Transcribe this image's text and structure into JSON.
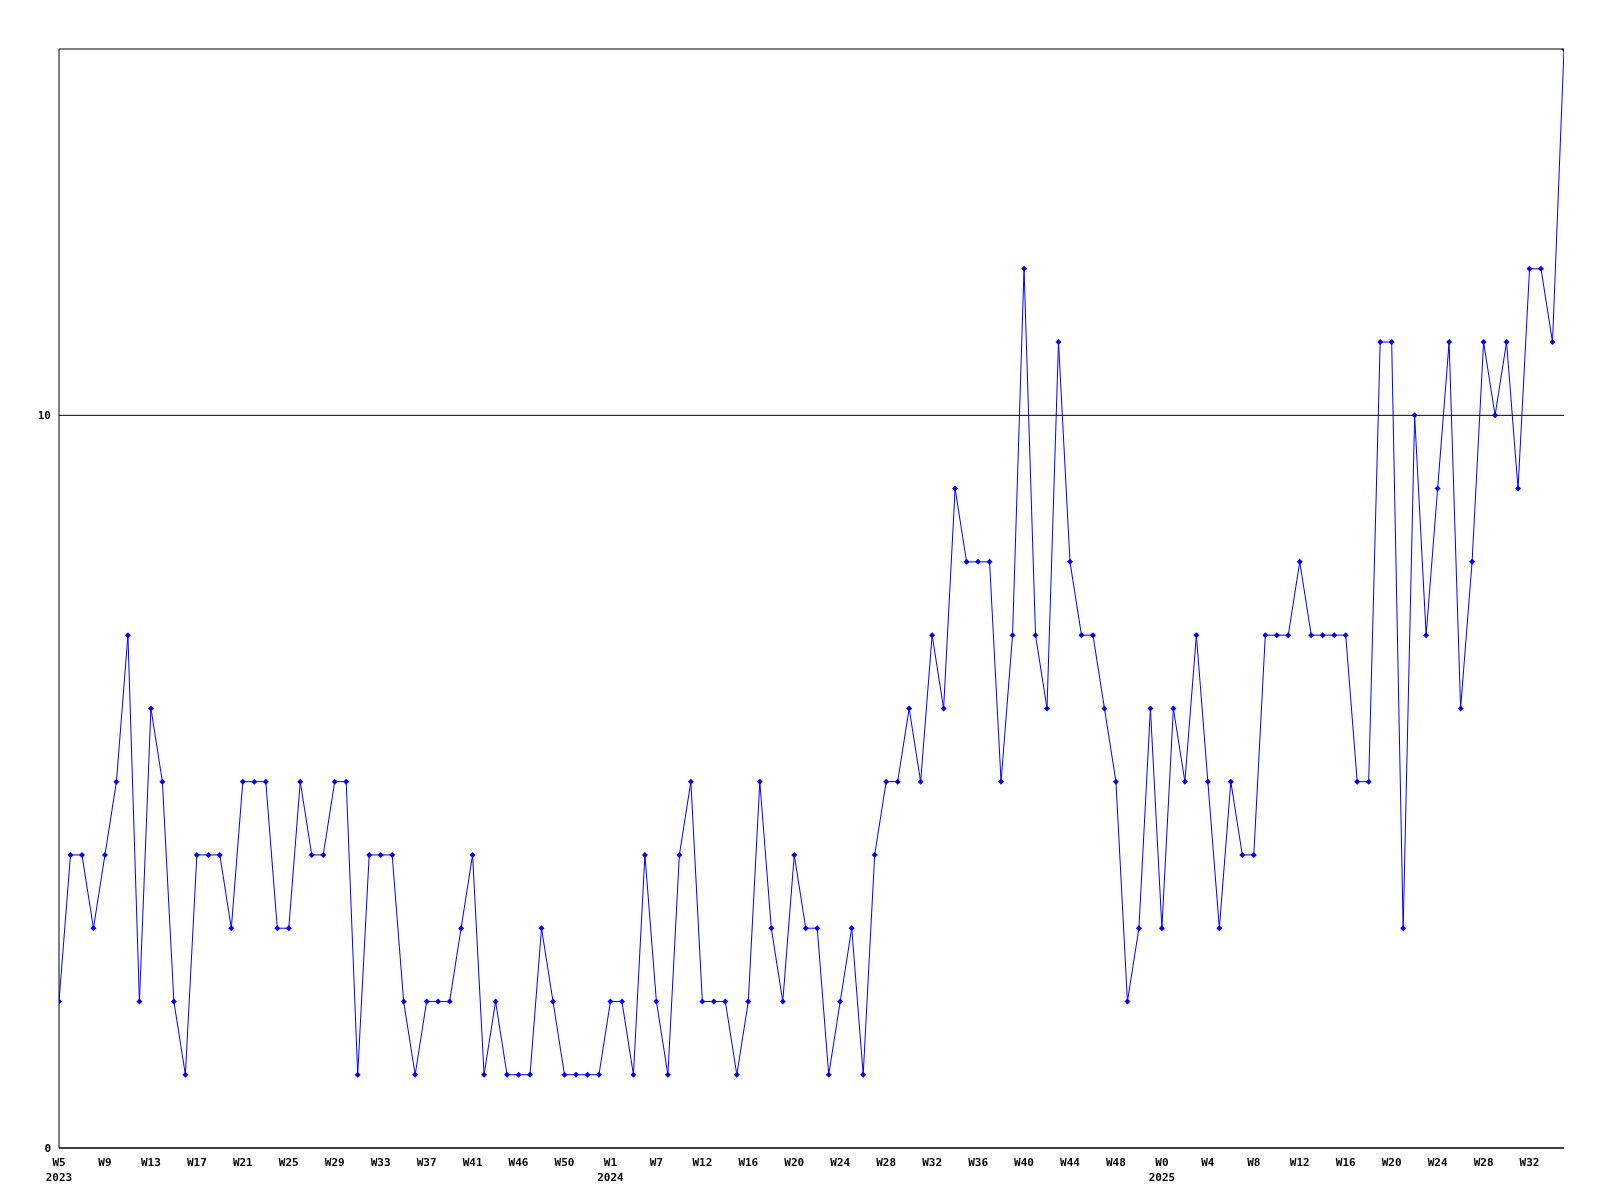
{
  "chart_data": {
    "type": "line",
    "categories": [
      "W5\n2023",
      null,
      null,
      null,
      "W9",
      null,
      null,
      null,
      "W13",
      null,
      null,
      null,
      "W17",
      null,
      null,
      null,
      "W21",
      null,
      null,
      null,
      "W25",
      null,
      null,
      null,
      "W29",
      null,
      null,
      null,
      "W33",
      null,
      null,
      null,
      "W37",
      null,
      null,
      null,
      "W41",
      null,
      null,
      null,
      "W46",
      null,
      null,
      null,
      "W50",
      null,
      null,
      null,
      "W1\n2024",
      null,
      null,
      null,
      "W7",
      null,
      null,
      null,
      "W12",
      null,
      null,
      null,
      "W16",
      null,
      null,
      null,
      "W20",
      null,
      null,
      null,
      "W24",
      null,
      null,
      null,
      "W28",
      null,
      null,
      null,
      "W32",
      null,
      null,
      null,
      "W36",
      null,
      null,
      null,
      "W40",
      null,
      null,
      null,
      "W44",
      null,
      null,
      null,
      "W48",
      null,
      null,
      null,
      "W0\n2025",
      null,
      null,
      null,
      "W4",
      null,
      null,
      null,
      "W8",
      null,
      null,
      null,
      "W12",
      null,
      null,
      null,
      "W16",
      null,
      null,
      null,
      "W20",
      null,
      null,
      null,
      "W24",
      null,
      null,
      null,
      "W28",
      null,
      null,
      null,
      "W32",
      null,
      null,
      null
    ],
    "series": [
      {
        "color": "#0000ff",
        "values": [
          2,
          4,
          4,
          3,
          4,
          5,
          7,
          2,
          6,
          5,
          2,
          1,
          4,
          4,
          4,
          3,
          5,
          5,
          5,
          3,
          3,
          5,
          4,
          4,
          5,
          5,
          1,
          4,
          4,
          4,
          2,
          1,
          2,
          2,
          2,
          3,
          4,
          1,
          2,
          1,
          1,
          1,
          3,
          2,
          1,
          1,
          1,
          1,
          2,
          2,
          1,
          4,
          2,
          1,
          4,
          5,
          2,
          2,
          2,
          1,
          2,
          5,
          3,
          2,
          4,
          3,
          3,
          1,
          2,
          3,
          1,
          4,
          5,
          5,
          6,
          5,
          7,
          6,
          9,
          8,
          8,
          8,
          5,
          7,
          12,
          7,
          6,
          11,
          8,
          7,
          7,
          6,
          5,
          2,
          3,
          6,
          3,
          6,
          5,
          7,
          5,
          3,
          5,
          4,
          4,
          7,
          7,
          7,
          8,
          7,
          7,
          7,
          7,
          5,
          5,
          11,
          11,
          3,
          10,
          7,
          9,
          11,
          6,
          8,
          11,
          10,
          11,
          9,
          12,
          12,
          11,
          15
        ]
      }
    ],
    "ylim": [
      0,
      15
    ],
    "yticks": [
      0,
      10
    ],
    "grid": "y",
    "marker": "diamond",
    "line_style": "solid"
  }
}
